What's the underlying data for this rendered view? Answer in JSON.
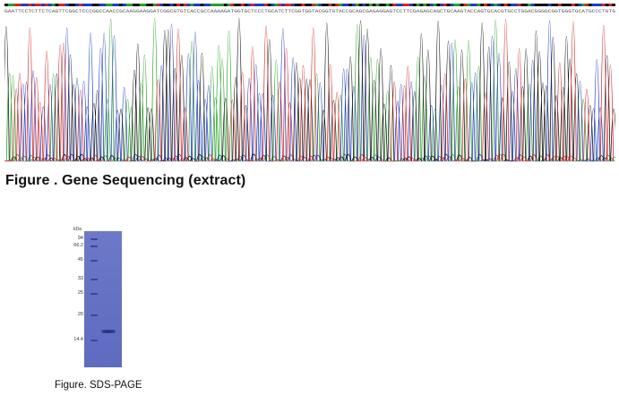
{
  "sequencing": {
    "caption": "Figure . Gene Sequencing (extract)",
    "base_sequence": "GAATTCCTCTTCTCAGTTCGGCTCCCGGCCAACCGCAAGGAAGGATCGGCGTGTCACCGCCAAAAGATGGTGCTCCCTGCATCTTCGGTGGTACGGTGTACCGCAGCGAGAGGAGTCCTTCGAGAGCAGCTGCAAGTACCAGTGCACGTGCCTGGACGGGGCGGTGGGTGCATGCCCTGTG",
    "base_colors": {
      "A": "#2ca02c",
      "C": "#1f3fbf",
      "G": "#111111",
      "T": "#d62728"
    }
  },
  "sds_page": {
    "caption": "Figure. SDS-PAGE",
    "unit_label": "kDa",
    "markers": [
      "94",
      "66.2",
      "45",
      "33",
      "25",
      "20",
      "14.4"
    ],
    "gel_color": "#6571c4",
    "band_color": "#26308a"
  }
}
